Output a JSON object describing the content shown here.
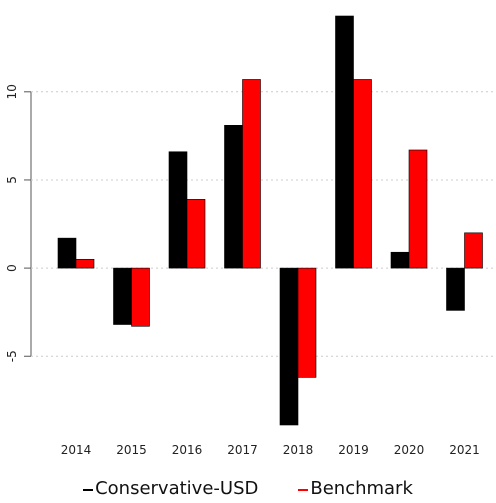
{
  "chart_data": {
    "type": "bar",
    "title": "",
    "xlabel": "",
    "ylabel": "",
    "categories": [
      "2014",
      "2015",
      "2016",
      "2017",
      "2018",
      "2019",
      "2020",
      "2021"
    ],
    "series": [
      {
        "name": "Conservative-USD",
        "color": "#000000",
        "values": [
          1.7,
          -3.2,
          6.6,
          8.1,
          -8.9,
          14.3,
          0.9,
          -2.4
        ]
      },
      {
        "name": "Benchmark",
        "color": "#ff0000",
        "values": [
          0.5,
          -3.3,
          3.9,
          10.7,
          -6.2,
          10.7,
          6.7,
          2.0
        ]
      }
    ],
    "yticks": [
      -5,
      0,
      5,
      10
    ],
    "ylim": [
      -8.9,
      14.3
    ],
    "grid": true,
    "legend_position": "bottom"
  }
}
